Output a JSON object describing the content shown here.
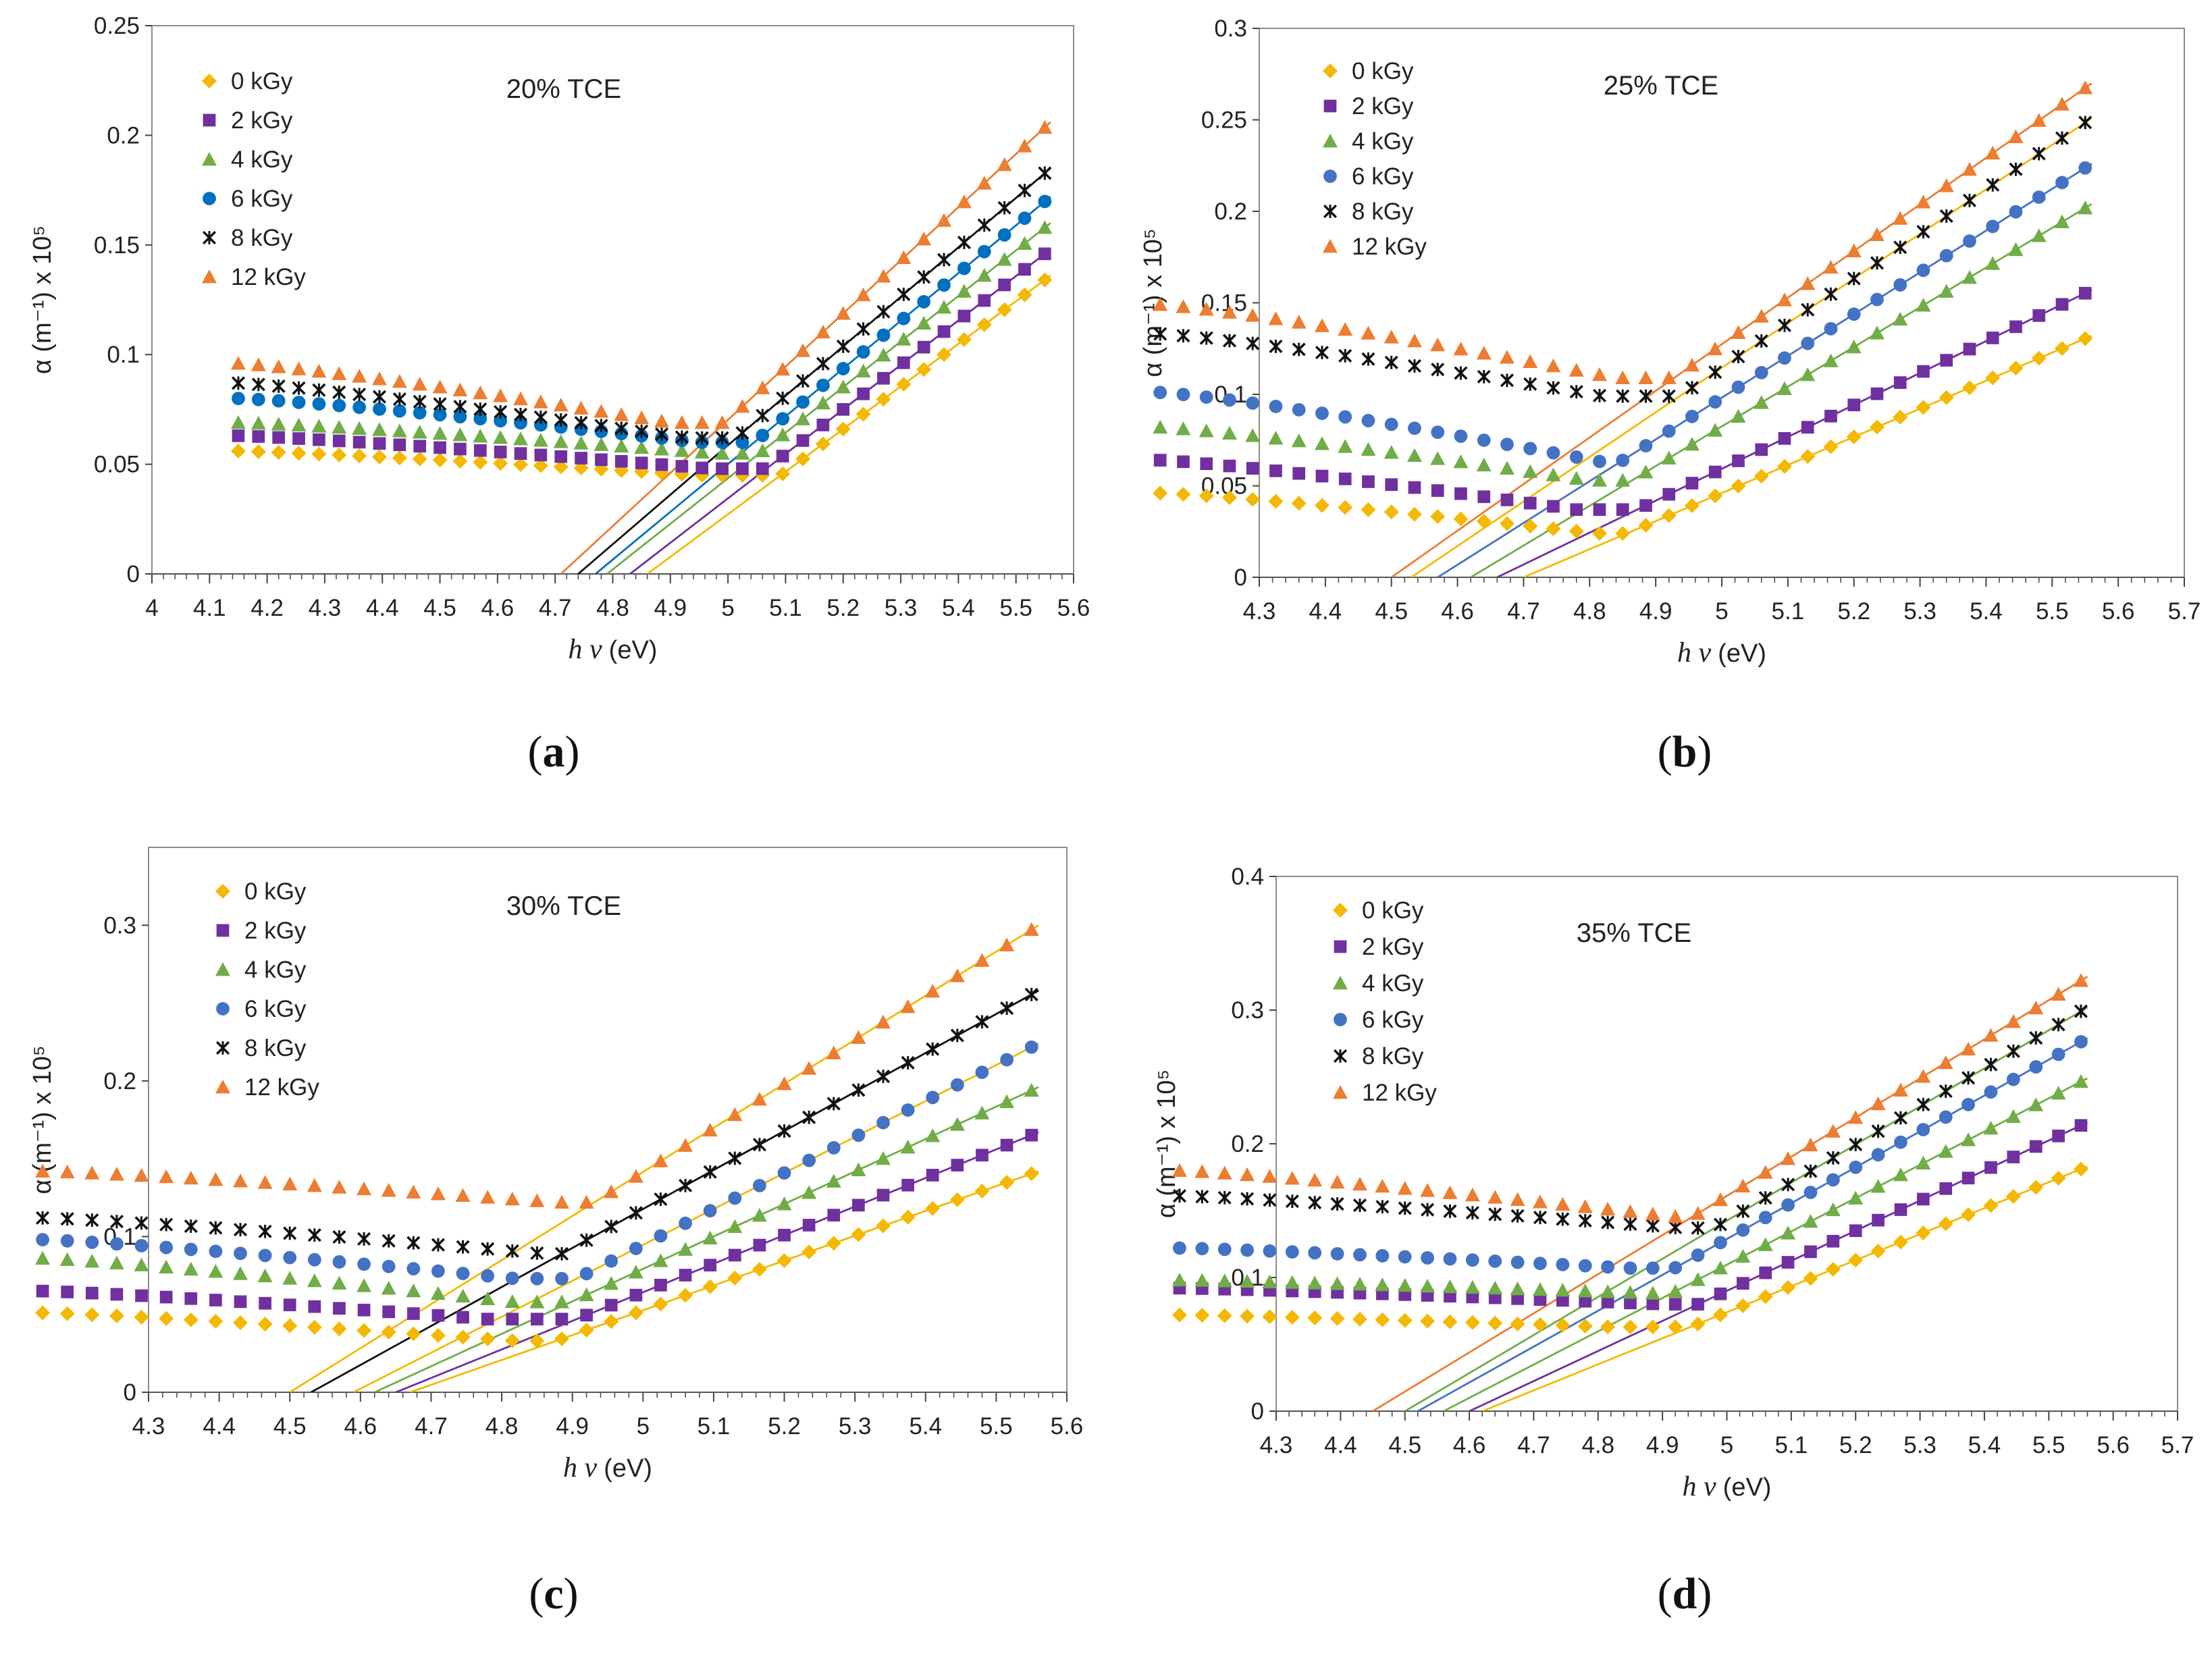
{
  "chart_data": [
    {
      "type": "scatter",
      "panel_label": "a",
      "title": "20% TCE",
      "xlabel_italic": "h v",
      "xlabel_unit": "(eV)",
      "ylabel": "α (m⁻¹) x 10⁵",
      "xlim": [
        4,
        5.6
      ],
      "ylim": [
        0,
        0.25
      ],
      "xticks": [
        "4",
        "4.1",
        "4.2",
        "4.3",
        "4.4",
        "4.5",
        "4.6",
        "4.7",
        "4.8",
        "4.9",
        "5",
        "5.1",
        "5.2",
        "5.3",
        "5.4",
        "5.5",
        "5.6"
      ],
      "xtick_values": [
        4,
        4.1,
        4.2,
        4.3,
        4.4,
        4.5,
        4.6,
        4.7,
        4.8,
        4.9,
        5,
        5.1,
        5.2,
        5.3,
        5.4,
        5.5,
        5.6
      ],
      "yticks": [
        "0",
        "0.05",
        "0.1",
        "0.15",
        "0.2",
        "0.25"
      ],
      "ytick_values": [
        0,
        0.05,
        0.1,
        0.15,
        0.2,
        0.25
      ],
      "legend_position": "top-left",
      "series": [
        {
          "name": "0 kGy",
          "color": "#f5b800",
          "marker": "diamond",
          "y_start": 0.056,
          "y_min": 0.045,
          "x_min": 4.95,
          "y_end": 0.136,
          "fit": [
            4.86,
            5.56,
            0.136
          ],
          "fit_color": "#f5b800"
        },
        {
          "name": "2 kGy",
          "color": "#7030a0",
          "marker": "square",
          "y_start": 0.063,
          "y_min": 0.048,
          "x_min": 4.97,
          "y_end": 0.148,
          "fit": [
            4.83,
            5.56,
            0.148
          ],
          "fit_color": "#7030a0"
        },
        {
          "name": "4 kGy",
          "color": "#70ad47",
          "marker": "triangle",
          "y_start": 0.069,
          "y_min": 0.055,
          "x_min": 4.98,
          "y_end": 0.16,
          "fit": [
            4.79,
            5.56,
            0.16
          ],
          "fit_color": "#70ad47"
        },
        {
          "name": "6 kGy",
          "color": "#0070c0",
          "marker": "circle",
          "y_start": 0.08,
          "y_min": 0.06,
          "x_min": 4.95,
          "y_end": 0.172,
          "fit": [
            4.77,
            5.56,
            0.172
          ],
          "fit_color": "#0070c0"
        },
        {
          "name": "8 kGy",
          "color": "#111111",
          "marker": "star",
          "y_start": 0.087,
          "y_min": 0.062,
          "x_min": 4.93,
          "y_end": 0.185,
          "fit": [
            4.74,
            5.56,
            0.185
          ],
          "fit_color": "#111111"
        },
        {
          "name": "12 kGy",
          "color": "#ed7d31",
          "marker": "triangle",
          "y_start": 0.096,
          "y_min": 0.069,
          "x_min": 4.9,
          "y_end": 0.206,
          "fit": [
            4.71,
            5.56,
            0.206
          ],
          "fit_color": "#ed7d31"
        }
      ]
    },
    {
      "type": "scatter",
      "panel_label": "b",
      "title": "25% TCE",
      "xlabel_italic": "h v",
      "xlabel_unit": "(eV)",
      "ylabel": "α (m⁻¹) x 10⁵",
      "xlim": [
        4.3,
        5.7
      ],
      "ylim": [
        0,
        0.3
      ],
      "xticks": [
        "4.3",
        "4.4",
        "4.5",
        "4.6",
        "4.7",
        "4.8",
        "4.9",
        "5",
        "5.1",
        "5.2",
        "5.3",
        "5.4",
        "5.5",
        "5.6",
        "5.7"
      ],
      "xtick_values": [
        4.3,
        4.4,
        4.5,
        4.6,
        4.7,
        4.8,
        4.9,
        5,
        5.1,
        5.2,
        5.3,
        5.4,
        5.5,
        5.6,
        5.7
      ],
      "yticks": [
        "0",
        "0.05",
        "0.1",
        "0.15",
        "0.2",
        "0.25",
        "0.3"
      ],
      "ytick_values": [
        0,
        0.05,
        0.1,
        0.15,
        0.2,
        0.25,
        0.3
      ],
      "legend_position": "top-left",
      "series": [
        {
          "name": "0 kGy",
          "color": "#f5b800",
          "marker": "diamond",
          "y_start": 0.046,
          "y_min": 0.024,
          "x_min": 4.81,
          "y_end": 0.132,
          "fit": [
            4.7,
            5.56,
            0.132
          ],
          "fit_color": "#f5b800"
        },
        {
          "name": "2 kGy",
          "color": "#7030a0",
          "marker": "square",
          "y_start": 0.064,
          "y_min": 0.037,
          "x_min": 4.78,
          "y_end": 0.157,
          "fit": [
            4.66,
            5.56,
            0.157
          ],
          "fit_color": "#7030a0"
        },
        {
          "name": "4 kGy",
          "color": "#70ad47",
          "marker": "triangle",
          "y_start": 0.082,
          "y_min": 0.053,
          "x_min": 4.8,
          "y_end": 0.204,
          "fit": [
            4.62,
            5.56,
            0.204
          ],
          "fit_color": "#70ad47"
        },
        {
          "name": "6 kGy",
          "color": "#4472c4",
          "marker": "circle",
          "y_start": 0.101,
          "y_min": 0.063,
          "x_min": 4.82,
          "y_end": 0.226,
          "fit": [
            4.57,
            5.56,
            0.226
          ],
          "fit_color": "#4472c4"
        },
        {
          "name": "8 kGy",
          "color": "#111111",
          "marker": "star",
          "y_start": 0.133,
          "y_min": 0.099,
          "x_min": 4.82,
          "y_end": 0.251,
          "fit": [
            4.53,
            5.56,
            0.251
          ],
          "fit_color": "#f5b800"
        },
        {
          "name": "12 kGy",
          "color": "#ed7d31",
          "marker": "triangle",
          "y_start": 0.149,
          "y_min": 0.109,
          "x_min": 4.84,
          "y_end": 0.27,
          "fit": [
            4.5,
            5.56,
            0.27
          ],
          "fit_color": "#ed7d31"
        }
      ]
    },
    {
      "type": "scatter",
      "panel_label": "c",
      "title": "30% TCE",
      "xlabel_italic": "h v",
      "xlabel_unit": "(eV)",
      "ylabel": "α (m⁻¹) x 10⁵",
      "xlim": [
        4.3,
        5.6
      ],
      "ylim": [
        0,
        0.35
      ],
      "xticks": [
        "4.3",
        "4.4",
        "4.5",
        "4.6",
        "4.7",
        "4.8",
        "4.9",
        "5",
        "5.1",
        "5.2",
        "5.3",
        "5.4",
        "5.5",
        "5.6"
      ],
      "xtick_values": [
        4.3,
        4.4,
        4.5,
        4.6,
        4.7,
        4.8,
        4.9,
        5,
        5.1,
        5.2,
        5.3,
        5.4,
        5.5,
        5.6
      ],
      "yticks": [
        "0",
        "0.1",
        "0.2",
        "0.3"
      ],
      "ytick_values": [
        0,
        0.1,
        0.2,
        0.3
      ],
      "legend_position": "top-left",
      "series": [
        {
          "name": "0 kGy",
          "color": "#f5b800",
          "marker": "diamond",
          "y_start": 0.051,
          "y_min": 0.033,
          "x_min": 4.82,
          "y_end": 0.142,
          "fit": [
            4.67,
            5.56,
            0.142
          ],
          "fit_color": "#f5b800"
        },
        {
          "name": "2 kGy",
          "color": "#7030a0",
          "marker": "square",
          "y_start": 0.065,
          "y_min": 0.047,
          "x_min": 4.78,
          "y_end": 0.167,
          "fit": [
            4.65,
            5.56,
            0.167
          ],
          "fit_color": "#7030a0"
        },
        {
          "name": "4 kGy",
          "color": "#70ad47",
          "marker": "triangle",
          "y_start": 0.086,
          "y_min": 0.058,
          "x_min": 4.82,
          "y_end": 0.196,
          "fit": [
            4.62,
            5.56,
            0.196
          ],
          "fit_color": "#70ad47"
        },
        {
          "name": "6 kGy",
          "color": "#4472c4",
          "marker": "circle",
          "y_start": 0.098,
          "y_min": 0.073,
          "x_min": 4.82,
          "y_end": 0.224,
          "fit": [
            4.59,
            5.56,
            0.224
          ],
          "fit_color": "#f5b800"
        },
        {
          "name": "8 kGy",
          "color": "#111111",
          "marker": "star",
          "y_start": 0.112,
          "y_min": 0.089,
          "x_min": 4.86,
          "y_end": 0.258,
          "fit": [
            4.53,
            5.56,
            0.258
          ],
          "fit_color": "#111111"
        },
        {
          "name": "12 kGy",
          "color": "#ed7d31",
          "marker": "triangle",
          "y_start": 0.142,
          "y_min": 0.122,
          "x_min": 4.88,
          "y_end": 0.3,
          "fit": [
            4.5,
            5.56,
            0.3
          ],
          "fit_color": "#f5b800"
        }
      ]
    },
    {
      "type": "scatter",
      "panel_label": "d",
      "title": "35% TCE",
      "xlabel_italic": "h v",
      "xlabel_unit": "(eV)",
      "ylabel": "α (m⁻¹) x 10⁵",
      "xlim": [
        4.3,
        5.7
      ],
      "ylim": [
        0,
        0.4
      ],
      "xticks": [
        "4.3",
        "4.4",
        "4.5",
        "4.6",
        "4.7",
        "4.8",
        "4.9",
        "5",
        "5.1",
        "5.2",
        "5.3",
        "5.4",
        "5.5",
        "5.6",
        "5.7"
      ],
      "xtick_values": [
        4.3,
        4.4,
        4.5,
        4.6,
        4.7,
        4.8,
        4.9,
        5,
        5.1,
        5.2,
        5.3,
        5.4,
        5.5,
        5.6,
        5.7
      ],
      "yticks": [
        "0",
        "0.1",
        "0.2",
        "0.3",
        "0.4"
      ],
      "ytick_values": [
        0,
        0.1,
        0.2,
        0.3,
        0.4
      ],
      "legend_position": "top-left",
      "series": [
        {
          "name": "0 kGy",
          "color": "#f5b800",
          "marker": "diamond",
          "y_start": 0.072,
          "y_min": 0.063,
          "x_min": 4.82,
          "y_end": 0.183,
          "fit": [
            4.62,
            5.56,
            0.183
          ],
          "fit_color": "#f5b800"
        },
        {
          "name": "2 kGy",
          "color": "#7030a0",
          "marker": "square",
          "y_start": 0.092,
          "y_min": 0.08,
          "x_min": 4.9,
          "y_end": 0.216,
          "fit": [
            4.6,
            5.56,
            0.216
          ],
          "fit_color": "#7030a0"
        },
        {
          "name": "4 kGy",
          "color": "#70ad47",
          "marker": "triangle",
          "y_start": 0.098,
          "y_min": 0.088,
          "x_min": 4.9,
          "y_end": 0.249,
          "fit": [
            4.56,
            5.56,
            0.249
          ],
          "fit_color": "#70ad47"
        },
        {
          "name": "6 kGy",
          "color": "#4472c4",
          "marker": "circle",
          "y_start": 0.122,
          "y_min": 0.107,
          "x_min": 4.85,
          "y_end": 0.279,
          "fit": [
            4.52,
            5.56,
            0.279
          ],
          "fit_color": "#4472c4"
        },
        {
          "name": "8 kGy",
          "color": "#111111",
          "marker": "star",
          "y_start": 0.161,
          "y_min": 0.137,
          "x_min": 4.93,
          "y_end": 0.302,
          "fit": [
            4.5,
            5.56,
            0.302
          ],
          "fit_color": "#70ad47"
        },
        {
          "name": "12 kGy",
          "color": "#ed7d31",
          "marker": "triangle",
          "y_start": 0.18,
          "y_min": 0.145,
          "x_min": 4.93,
          "y_end": 0.325,
          "fit": [
            4.45,
            5.56,
            0.325
          ],
          "fit_color": "#ed7d31"
        }
      ]
    }
  ]
}
